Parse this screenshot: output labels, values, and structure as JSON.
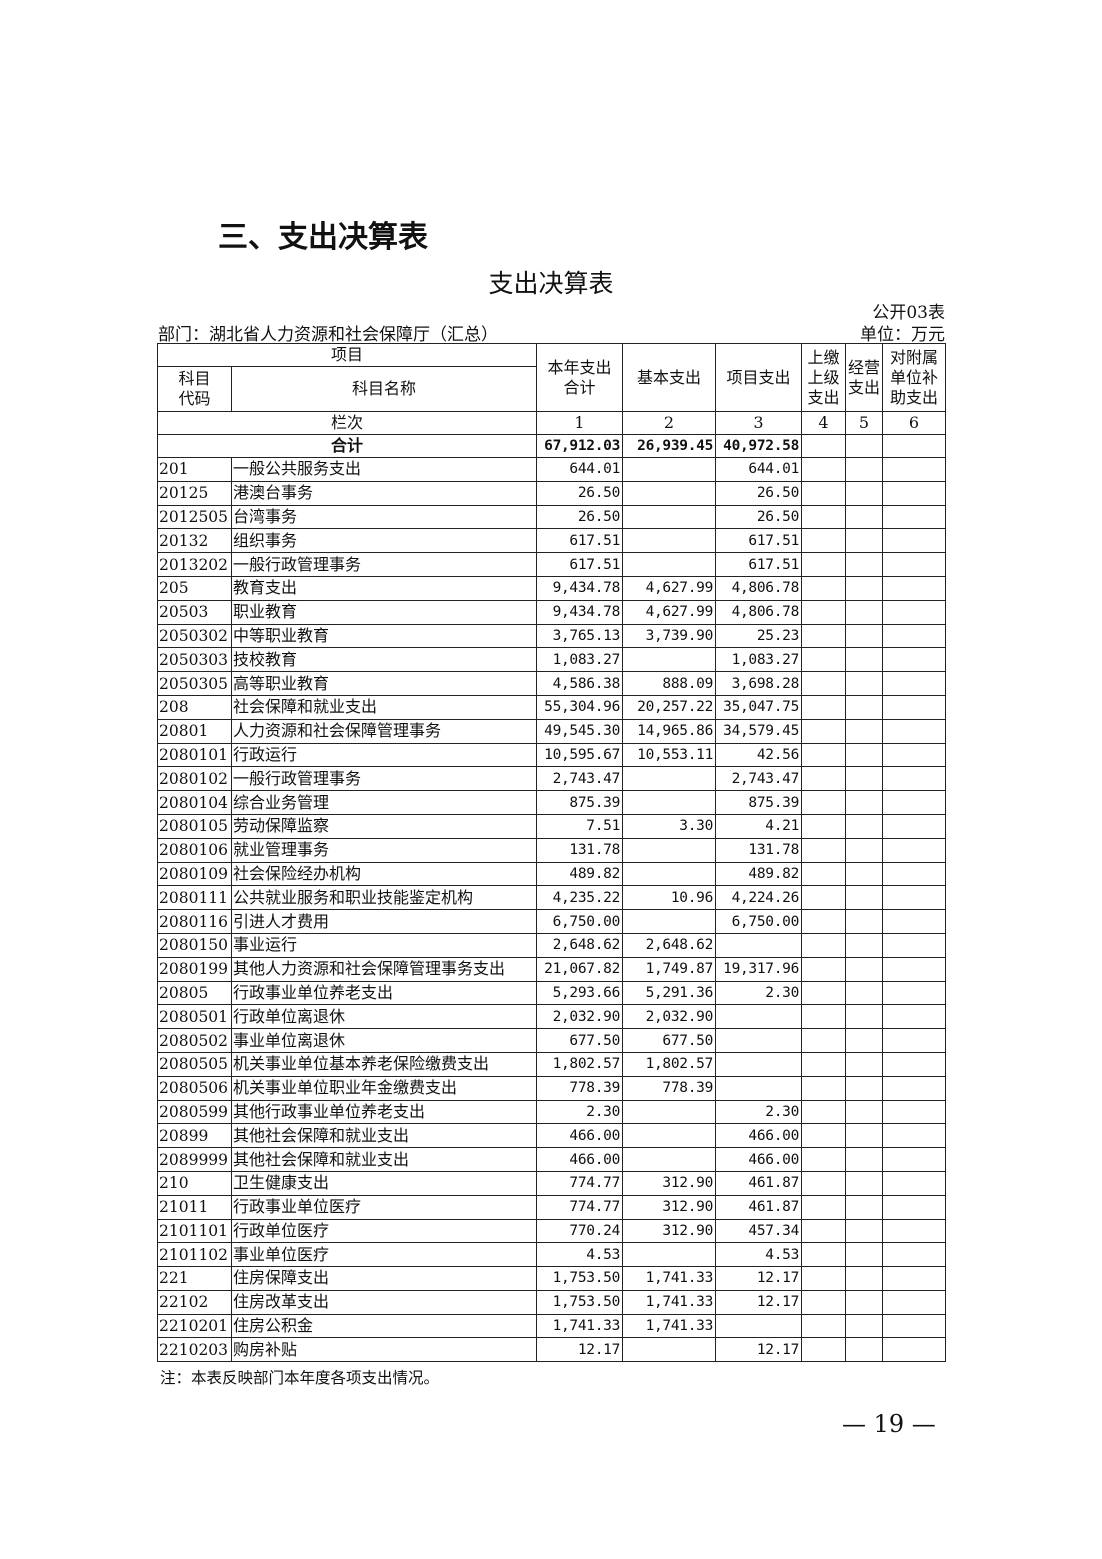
{
  "section_heading": "三、支出决算表",
  "table_title": "支出决算表",
  "form_no": "公开03表",
  "department": "部门：湖北省人力资源和社会保障厅（汇总）",
  "unit": "单位：万元",
  "header": {
    "item": "项目",
    "code": "科目代码",
    "name": "科目名称",
    "col1": "本年支出合计",
    "col2": "基本支出",
    "col3": "项目支出",
    "col4": "上缴上级支出",
    "col5": "经营支出",
    "col6": "对附属单位补助支出",
    "seq_label": "栏次",
    "seq": [
      "1",
      "2",
      "3",
      "4",
      "5",
      "6"
    ]
  },
  "total": {
    "label": "合计",
    "values": [
      "67,912.03",
      "26,939.45",
      "40,972.58",
      "",
      "",
      ""
    ]
  },
  "rows": [
    {
      "code": "201",
      "name": "一般公共服务支出",
      "v": [
        "644.01",
        "",
        "644.01"
      ]
    },
    {
      "code": "20125",
      "name": "港澳台事务",
      "v": [
        "26.50",
        "",
        "26.50"
      ]
    },
    {
      "code": "2012505",
      "name": "台湾事务",
      "v": [
        "26.50",
        "",
        "26.50"
      ]
    },
    {
      "code": "20132",
      "name": "组织事务",
      "v": [
        "617.51",
        "",
        "617.51"
      ]
    },
    {
      "code": "2013202",
      "name": "一般行政管理事务",
      "v": [
        "617.51",
        "",
        "617.51"
      ]
    },
    {
      "code": "205",
      "name": "教育支出",
      "v": [
        "9,434.78",
        "4,627.99",
        "4,806.78"
      ]
    },
    {
      "code": "20503",
      "name": "职业教育",
      "v": [
        "9,434.78",
        "4,627.99",
        "4,806.78"
      ]
    },
    {
      "code": "2050302",
      "name": "中等职业教育",
      "v": [
        "3,765.13",
        "3,739.90",
        "25.23"
      ]
    },
    {
      "code": "2050303",
      "name": "技校教育",
      "v": [
        "1,083.27",
        "",
        "1,083.27"
      ]
    },
    {
      "code": "2050305",
      "name": "高等职业教育",
      "v": [
        "4,586.38",
        "888.09",
        "3,698.28"
      ]
    },
    {
      "code": "208",
      "name": "社会保障和就业支出",
      "v": [
        "55,304.96",
        "20,257.22",
        "35,047.75"
      ]
    },
    {
      "code": "20801",
      "name": "人力资源和社会保障管理事务",
      "v": [
        "49,545.30",
        "14,965.86",
        "34,579.45"
      ]
    },
    {
      "code": "2080101",
      "name": "行政运行",
      "v": [
        "10,595.67",
        "10,553.11",
        "42.56"
      ]
    },
    {
      "code": "2080102",
      "name": "一般行政管理事务",
      "v": [
        "2,743.47",
        "",
        "2,743.47"
      ]
    },
    {
      "code": "2080104",
      "name": "综合业务管理",
      "v": [
        "875.39",
        "",
        "875.39"
      ]
    },
    {
      "code": "2080105",
      "name": "劳动保障监察",
      "v": [
        "7.51",
        "3.30",
        "4.21"
      ]
    },
    {
      "code": "2080106",
      "name": "就业管理事务",
      "v": [
        "131.78",
        "",
        "131.78"
      ]
    },
    {
      "code": "2080109",
      "name": "社会保险经办机构",
      "v": [
        "489.82",
        "",
        "489.82"
      ]
    },
    {
      "code": "2080111",
      "name": "公共就业服务和职业技能鉴定机构",
      "v": [
        "4,235.22",
        "10.96",
        "4,224.26"
      ]
    },
    {
      "code": "2080116",
      "name": "引进人才费用",
      "v": [
        "6,750.00",
        "",
        "6,750.00"
      ]
    },
    {
      "code": "2080150",
      "name": "事业运行",
      "v": [
        "2,648.62",
        "2,648.62",
        ""
      ]
    },
    {
      "code": "2080199",
      "name": "其他人力资源和社会保障管理事务支出",
      "v": [
        "21,067.82",
        "1,749.87",
        "19,317.96"
      ]
    },
    {
      "code": "20805",
      "name": "行政事业单位养老支出",
      "v": [
        "5,293.66",
        "5,291.36",
        "2.30"
      ]
    },
    {
      "code": "2080501",
      "name": "行政单位离退休",
      "v": [
        "2,032.90",
        "2,032.90",
        ""
      ]
    },
    {
      "code": "2080502",
      "name": "事业单位离退休",
      "v": [
        "677.50",
        "677.50",
        ""
      ]
    },
    {
      "code": "2080505",
      "name": "机关事业单位基本养老保险缴费支出",
      "v": [
        "1,802.57",
        "1,802.57",
        ""
      ]
    },
    {
      "code": "2080506",
      "name": "机关事业单位职业年金缴费支出",
      "v": [
        "778.39",
        "778.39",
        ""
      ]
    },
    {
      "code": "2080599",
      "name": "其他行政事业单位养老支出",
      "v": [
        "2.30",
        "",
        "2.30"
      ]
    },
    {
      "code": "20899",
      "name": "其他社会保障和就业支出",
      "v": [
        "466.00",
        "",
        "466.00"
      ]
    },
    {
      "code": "2089999",
      "name": "其他社会保障和就业支出",
      "v": [
        "466.00",
        "",
        "466.00"
      ]
    },
    {
      "code": "210",
      "name": "卫生健康支出",
      "v": [
        "774.77",
        "312.90",
        "461.87"
      ]
    },
    {
      "code": "21011",
      "name": "行政事业单位医疗",
      "v": [
        "774.77",
        "312.90",
        "461.87"
      ]
    },
    {
      "code": "2101101",
      "name": "行政单位医疗",
      "v": [
        "770.24",
        "312.90",
        "457.34"
      ]
    },
    {
      "code": "2101102",
      "name": "事业单位医疗",
      "v": [
        "4.53",
        "",
        "4.53"
      ]
    },
    {
      "code": "221",
      "name": "住房保障支出",
      "v": [
        "1,753.50",
        "1,741.33",
        "12.17"
      ]
    },
    {
      "code": "22102",
      "name": "住房改革支出",
      "v": [
        "1,753.50",
        "1,741.33",
        "12.17"
      ]
    },
    {
      "code": "2210201",
      "name": "住房公积金",
      "v": [
        "1,741.33",
        "1,741.33",
        ""
      ]
    },
    {
      "code": "2210203",
      "name": "购房补贴",
      "v": [
        "12.17",
        "",
        "12.17"
      ]
    }
  ],
  "note": "注：本表反映部门本年度各项支出情况。",
  "page_number": "— 19 —"
}
